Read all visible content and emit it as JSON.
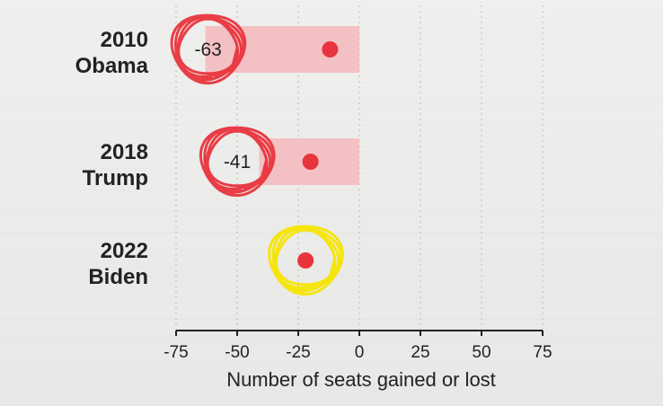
{
  "chart_data": {
    "type": "bar",
    "title": "",
    "xlabel": "Number of seats gained or lost",
    "ylabel": "",
    "xlim": [
      -75,
      75
    ],
    "x_ticks": [
      -75,
      -50,
      -25,
      0,
      25,
      50,
      75
    ],
    "x_tick_labels": [
      "-75",
      "-50",
      "-25",
      "0",
      "25",
      "50",
      "75"
    ],
    "grid": true,
    "categories": [
      {
        "year": "2010",
        "president": "Obama"
      },
      {
        "year": "2018",
        "president": "Trump"
      },
      {
        "year": "2022",
        "president": "Biden"
      }
    ],
    "bars": [
      {
        "value": -63,
        "label": "-63",
        "marker": -12
      },
      {
        "value": -41,
        "label": "-41",
        "marker": -20
      },
      {
        "value": null,
        "label": "",
        "marker": -22
      }
    ],
    "annotations": [
      {
        "category_index": 0,
        "at": -63,
        "color": "#e8343d"
      },
      {
        "category_index": 1,
        "at": -50,
        "color": "#e8343d"
      },
      {
        "category_index": 2,
        "at": -22,
        "color": "#f5e500"
      }
    ],
    "colors": {
      "bar": "#f3c1c3",
      "marker": "#e8343d",
      "axis": "#222222",
      "grid": "#b9b9b9"
    }
  }
}
